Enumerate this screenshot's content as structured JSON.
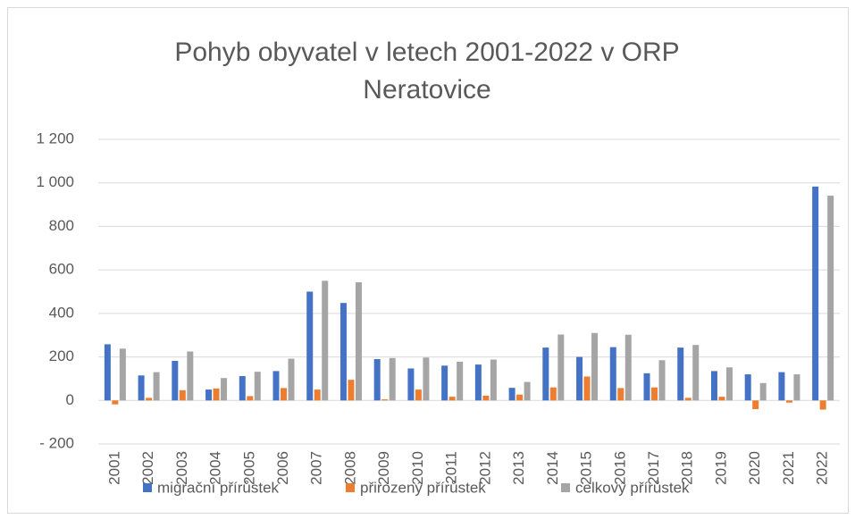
{
  "chart_data": {
    "type": "bar",
    "title": "Pohyb obyvatel v letech 2001-2022 v ORP Neratovice",
    "categories": [
      "2001",
      "2002",
      "2003",
      "2004",
      "2005",
      "2006",
      "2007",
      "2008",
      "2009",
      "2010",
      "2011",
      "2012",
      "2013",
      "2014",
      "2015",
      "2016",
      "2017",
      "2018",
      "2019",
      "2020",
      "2021",
      "2022"
    ],
    "series": [
      {
        "name": "migrační přírůstek",
        "color": "#4472c4",
        "values": [
          258,
          115,
          182,
          50,
          112,
          135,
          500,
          448,
          190,
          147,
          160,
          165,
          58,
          243,
          200,
          245,
          125,
          243,
          135,
          120,
          130,
          983
        ]
      },
      {
        "name": "přirozený přírůstek",
        "color": "#ed7d31",
        "values": [
          -18,
          12,
          47,
          55,
          20,
          57,
          50,
          95,
          5,
          50,
          17,
          22,
          27,
          60,
          110,
          57,
          60,
          12,
          17,
          -40,
          -10,
          -42
        ]
      },
      {
        "name": "celkový přírůstek",
        "color": "#a5a5a5",
        "values": [
          238,
          130,
          225,
          103,
          132,
          192,
          550,
          543,
          195,
          197,
          178,
          188,
          85,
          303,
          310,
          302,
          185,
          255,
          152,
          80,
          120,
          941
        ]
      }
    ],
    "ylim": [
      -200,
      1200
    ],
    "yticks": [
      {
        "value": -200,
        "label": "- 200"
      },
      0,
      200,
      400,
      600,
      800,
      {
        "value": 1000,
        "label": "1 000"
      },
      {
        "value": 1200,
        "label": "1 200"
      }
    ],
    "grid": true,
    "legend": "bottom"
  }
}
